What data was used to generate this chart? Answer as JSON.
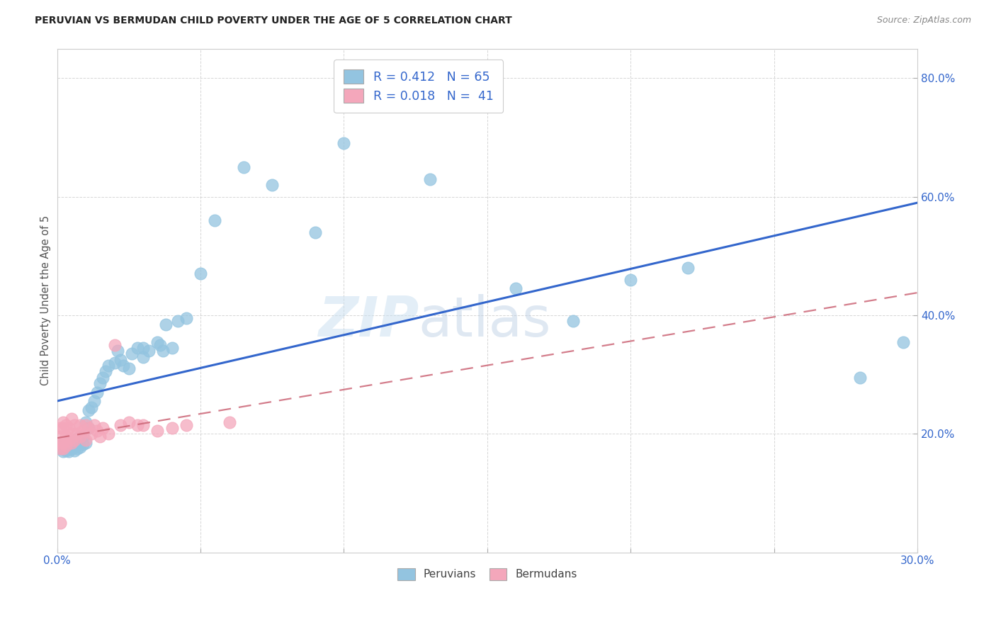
{
  "title": "PERUVIAN VS BERMUDAN CHILD POVERTY UNDER THE AGE OF 5 CORRELATION CHART",
  "source": "Source: ZipAtlas.com",
  "ylabel": "Child Poverty Under the Age of 5",
  "xlim": [
    0.0,
    0.3
  ],
  "ylim": [
    0.0,
    0.85
  ],
  "yticks": [
    0.0,
    0.2,
    0.4,
    0.6,
    0.8
  ],
  "xticks": [
    0.0,
    0.05,
    0.1,
    0.15,
    0.2,
    0.25,
    0.3
  ],
  "xtick_labels": [
    "0.0%",
    "",
    "",
    "",
    "",
    "",
    "30.0%"
  ],
  "ytick_labels": [
    "",
    "20.0%",
    "40.0%",
    "60.0%",
    "80.0%"
  ],
  "blue_color": "#93c4e0",
  "pink_color": "#f4a7bb",
  "blue_line_color": "#3366cc",
  "pink_line_color": "#cc6677",
  "R_blue": 0.412,
  "N_blue": 65,
  "R_pink": 0.018,
  "N_pink": 41,
  "bottom_legend_blue": "Peruvians",
  "bottom_legend_pink": "Bermudans",
  "watermark_zip": "ZIP",
  "watermark_atlas": "atlas",
  "background_color": "#ffffff",
  "grid_color": "#cccccc",
  "blue_scatter_x": [
    0.001,
    0.001,
    0.002,
    0.002,
    0.002,
    0.003,
    0.003,
    0.003,
    0.004,
    0.004,
    0.004,
    0.005,
    0.005,
    0.005,
    0.006,
    0.006,
    0.006,
    0.007,
    0.007,
    0.007,
    0.008,
    0.008,
    0.009,
    0.009,
    0.01,
    0.01,
    0.011,
    0.011,
    0.012,
    0.013,
    0.014,
    0.015,
    0.016,
    0.017,
    0.018,
    0.02,
    0.021,
    0.022,
    0.023,
    0.025,
    0.026,
    0.028,
    0.03,
    0.03,
    0.032,
    0.035,
    0.036,
    0.037,
    0.038,
    0.04,
    0.042,
    0.045,
    0.05,
    0.055,
    0.065,
    0.075,
    0.09,
    0.1,
    0.13,
    0.16,
    0.18,
    0.2,
    0.22,
    0.28,
    0.295
  ],
  "blue_scatter_y": [
    0.175,
    0.185,
    0.17,
    0.175,
    0.18,
    0.172,
    0.178,
    0.185,
    0.17,
    0.175,
    0.182,
    0.175,
    0.18,
    0.185,
    0.172,
    0.178,
    0.188,
    0.175,
    0.182,
    0.192,
    0.178,
    0.195,
    0.182,
    0.195,
    0.185,
    0.22,
    0.21,
    0.24,
    0.245,
    0.255,
    0.27,
    0.285,
    0.295,
    0.305,
    0.315,
    0.32,
    0.34,
    0.325,
    0.315,
    0.31,
    0.335,
    0.345,
    0.33,
    0.345,
    0.34,
    0.355,
    0.35,
    0.34,
    0.385,
    0.345,
    0.39,
    0.395,
    0.47,
    0.56,
    0.65,
    0.62,
    0.54,
    0.69,
    0.63,
    0.445,
    0.39,
    0.46,
    0.48,
    0.295,
    0.355
  ],
  "pink_scatter_x": [
    0.001,
    0.001,
    0.001,
    0.001,
    0.001,
    0.002,
    0.002,
    0.002,
    0.002,
    0.003,
    0.003,
    0.003,
    0.004,
    0.004,
    0.005,
    0.005,
    0.005,
    0.006,
    0.006,
    0.007,
    0.008,
    0.008,
    0.009,
    0.01,
    0.01,
    0.011,
    0.012,
    0.013,
    0.014,
    0.015,
    0.016,
    0.018,
    0.02,
    0.022,
    0.025,
    0.028,
    0.03,
    0.035,
    0.04,
    0.045,
    0.06
  ],
  "pink_scatter_y": [
    0.175,
    0.185,
    0.195,
    0.21,
    0.05,
    0.175,
    0.185,
    0.21,
    0.22,
    0.18,
    0.195,
    0.215,
    0.19,
    0.21,
    0.185,
    0.2,
    0.225,
    0.19,
    0.215,
    0.2,
    0.195,
    0.215,
    0.205,
    0.19,
    0.215,
    0.21,
    0.2,
    0.215,
    0.205,
    0.195,
    0.21,
    0.2,
    0.35,
    0.215,
    0.22,
    0.215,
    0.215,
    0.205,
    0.21,
    0.215,
    0.22
  ]
}
